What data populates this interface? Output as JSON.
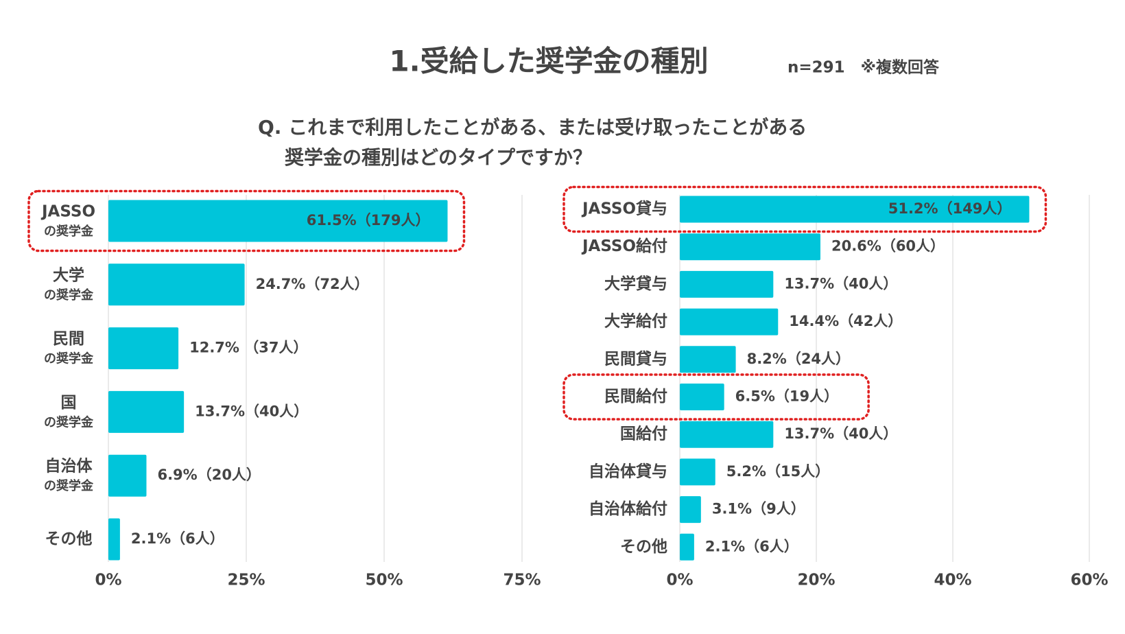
{
  "header": {
    "title": "1.受給した奨学金の種別",
    "note": "n=291　※複数回答",
    "question": [
      "Q. これまで利用したことがある、または受け取ったことがある",
      "奨学金の種別はどのタイプですか？"
    ]
  },
  "chart_data": [
    {
      "type": "bar",
      "orientation": "horizontal",
      "color": "#00c5da",
      "categories": [
        [
          "JASSO",
          "の奨学金"
        ],
        [
          "大学",
          "の奨学金"
        ],
        [
          "民間",
          "の奨学金"
        ],
        [
          "国",
          "の奨学金"
        ],
        [
          "自治体",
          "の奨学金"
        ],
        [
          "その他"
        ]
      ],
      "values": [
        61.5,
        24.7,
        12.7,
        13.7,
        6.9,
        2.1
      ],
      "value_labels": [
        "61.5%（179人）",
        "24.7%（72人）",
        "12.7% （37人）",
        "13.7%（40人）",
        "6.9%（20人）",
        "2.1%（6人）"
      ],
      "xlim": [
        0,
        75
      ],
      "xticks": [
        {
          "value": 0,
          "label": "0%"
        },
        {
          "value": 25,
          "label": "25%"
        },
        {
          "value": 50,
          "label": "50%"
        },
        {
          "value": 75,
          "label": "75%"
        }
      ],
      "grid": true,
      "highlight": [
        0
      ],
      "highlight_color": "#e02020"
    },
    {
      "type": "bar",
      "orientation": "horizontal",
      "color": "#00c5da",
      "categories": [
        [
          "JASSO貸与"
        ],
        [
          "JASSO給付"
        ],
        [
          "大学貸与"
        ],
        [
          "大学給付"
        ],
        [
          "民間貸与"
        ],
        [
          "民間給付"
        ],
        [
          "国給付"
        ],
        [
          "自治体貸与"
        ],
        [
          "自治体給付"
        ],
        [
          "その他"
        ]
      ],
      "values": [
        51.2,
        20.6,
        13.7,
        14.4,
        8.2,
        6.5,
        13.7,
        5.2,
        3.1,
        2.1
      ],
      "value_labels": [
        "51.2%（149人）",
        "20.6%（60人）",
        "13.7%（40人）",
        "14.4%（42人）",
        "8.2%（24人）",
        "6.5%（19人）",
        "13.7%（40人）",
        "5.2%（15人）",
        "3.1%（9人）",
        "2.1%（6人）"
      ],
      "xlim": [
        0,
        60
      ],
      "xticks": [
        {
          "value": 0,
          "label": "0%"
        },
        {
          "value": 20,
          "label": "20%"
        },
        {
          "value": 40,
          "label": "40%"
        },
        {
          "value": 60,
          "label": "60%"
        }
      ],
      "grid": true,
      "highlight": [
        0,
        5
      ],
      "highlight_color": "#e02020"
    }
  ]
}
